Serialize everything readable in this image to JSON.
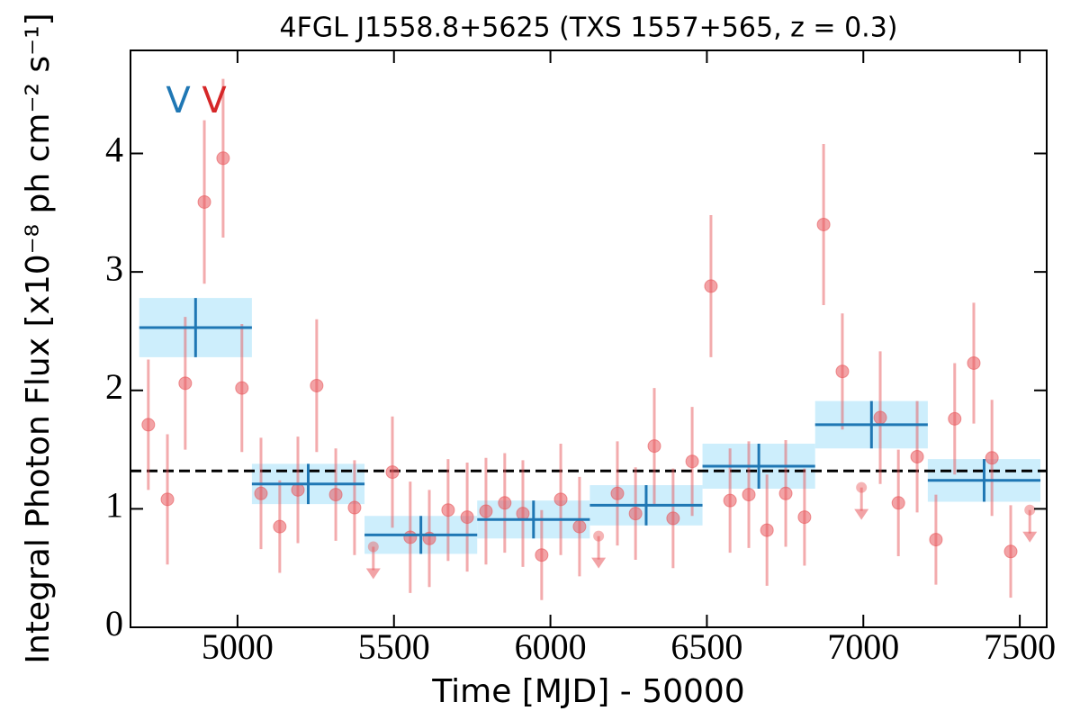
{
  "chart_data": {
    "type": "lightcurve",
    "title": "4FGL J1558.8+5625 (TXS 1557+565, z = 0.3)",
    "xlabel": "Time [MJD] - 50000",
    "ylabel": "Integral Photon Flux [x10⁻⁸ ph cm⁻² s⁻¹]",
    "annotations": [
      {
        "text": "V",
        "color": "#1f77b4"
      },
      {
        "text": "V",
        "color": "#d62728"
      }
    ],
    "xlim": [
      4658,
      7586
    ],
    "ylim": [
      0,
      4.87
    ],
    "xticks": [
      5000,
      5500,
      6000,
      6500,
      7000,
      7500
    ],
    "yticks": [
      0,
      1,
      2,
      3,
      4
    ],
    "points": {
      "color": "#e8585c",
      "x": [
        4715,
        4776,
        4833,
        4894,
        4954,
        5014,
        5075,
        5135,
        5193,
        5253,
        5314,
        5374,
        5495,
        5552,
        5613,
        5673,
        5734,
        5794,
        5854,
        5912,
        5972,
        6033,
        6093,
        6214,
        6272,
        6332,
        6392,
        6453,
        6513,
        6574,
        6634,
        6692,
        6752,
        6812,
        6873,
        6933,
        7054,
        7112,
        7172,
        7232,
        7292,
        7353,
        7411,
        7471
      ],
      "values": [
        1.71,
        1.08,
        2.06,
        3.59,
        3.96,
        2.02,
        1.13,
        0.85,
        1.16,
        2.04,
        1.12,
        1.01,
        1.31,
        0.76,
        0.75,
        0.99,
        0.93,
        0.98,
        1.05,
        0.96,
        0.61,
        1.08,
        0.85,
        1.13,
        0.96,
        1.53,
        0.92,
        1.4,
        2.88,
        1.07,
        1.12,
        0.82,
        1.13,
        0.93,
        3.4,
        2.16,
        1.77,
        1.05,
        1.44,
        0.74,
        1.76,
        2.23,
        1.43,
        0.64
      ],
      "errors": [
        0.55,
        0.55,
        0.56,
        0.69,
        0.67,
        0.54,
        0.47,
        0.39,
        0.45,
        0.56,
        0.39,
        0.4,
        0.47,
        0.47,
        0.41,
        0.43,
        0.46,
        0.45,
        0.42,
        0.45,
        0.38,
        0.47,
        0.42,
        0.44,
        0.39,
        0.49,
        0.42,
        0.46,
        0.6,
        0.44,
        0.45,
        0.47,
        0.45,
        0.41,
        0.68,
        0.49,
        0.56,
        0.45,
        0.47,
        0.38,
        0.47,
        0.51,
        0.49,
        0.39
      ]
    },
    "upper_limits": {
      "color": "#e8585c",
      "x": [
        5434,
        6154,
        6994,
        7532
      ],
      "values": [
        0.68,
        0.77,
        1.18,
        0.99
      ]
    },
    "binned": {
      "color": "#1f77b4",
      "box_color": "#cdeefc",
      "bins": [
        4686,
        5046,
        5406,
        5766,
        6126,
        6486,
        6846,
        7206,
        7566
      ],
      "values": [
        2.53,
        1.21,
        0.78,
        0.91,
        1.03,
        1.36,
        1.71,
        1.24
      ],
      "errors": [
        0.25,
        0.17,
        0.16,
        0.16,
        0.17,
        0.19,
        0.2,
        0.18
      ]
    },
    "reference_line": {
      "value": 1.32,
      "color": "#000000",
      "style": "dashed"
    }
  }
}
